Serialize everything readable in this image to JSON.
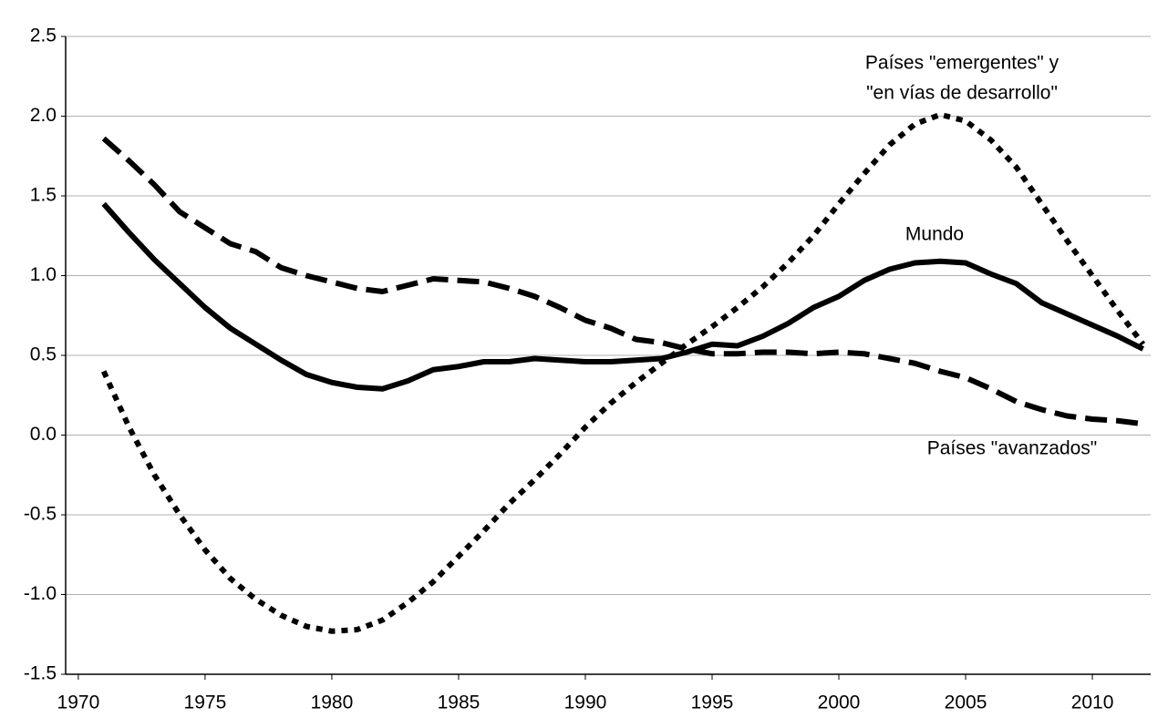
{
  "chart_data": {
    "type": "line",
    "x": [
      1971,
      1972,
      1973,
      1974,
      1975,
      1976,
      1977,
      1978,
      1979,
      1980,
      1981,
      1982,
      1983,
      1984,
      1985,
      1986,
      1987,
      1988,
      1989,
      1990,
      1991,
      1992,
      1993,
      1994,
      1995,
      1996,
      1997,
      1998,
      1999,
      2000,
      2001,
      2002,
      2003,
      2004,
      2005,
      2006,
      2007,
      2008,
      2009,
      2010,
      2011,
      2012
    ],
    "series": [
      {
        "name": "Mundo",
        "color": "#000000",
        "dash": "solid",
        "values": [
          1.45,
          1.27,
          1.1,
          0.95,
          0.8,
          0.67,
          0.57,
          0.47,
          0.38,
          0.33,
          0.3,
          0.29,
          0.34,
          0.41,
          0.43,
          0.46,
          0.46,
          0.48,
          0.47,
          0.46,
          0.46,
          0.47,
          0.48,
          0.52,
          0.57,
          0.56,
          0.62,
          0.7,
          0.8,
          0.87,
          0.97,
          1.04,
          1.08,
          1.09,
          1.08,
          1.01,
          0.95,
          0.83,
          0.76,
          0.69,
          0.62,
          0.54
        ]
      },
      {
        "name": "Países \"avanzados\"",
        "color": "#000000",
        "dash": "dashed",
        "values": [
          1.86,
          1.72,
          1.57,
          1.4,
          1.3,
          1.2,
          1.15,
          1.05,
          1.0,
          0.96,
          0.92,
          0.9,
          0.94,
          0.98,
          0.97,
          0.96,
          0.92,
          0.87,
          0.8,
          0.72,
          0.67,
          0.6,
          0.58,
          0.54,
          0.51,
          0.51,
          0.52,
          0.52,
          0.51,
          0.52,
          0.51,
          0.48,
          0.45,
          0.4,
          0.36,
          0.29,
          0.21,
          0.16,
          0.12,
          0.1,
          0.09,
          0.07
        ]
      },
      {
        "name": [
          "Países \"emergentes\"  y",
          "\"en vías de desarrollo\""
        ],
        "color": "#000000",
        "dash": "dotted",
        "values": [
          0.4,
          0.05,
          -0.25,
          -0.5,
          -0.72,
          -0.9,
          -1.03,
          -1.13,
          -1.2,
          -1.23,
          -1.22,
          -1.16,
          -1.05,
          -0.92,
          -0.76,
          -0.6,
          -0.43,
          -0.28,
          -0.12,
          0.05,
          0.2,
          0.33,
          0.45,
          0.57,
          0.68,
          0.8,
          0.93,
          1.08,
          1.25,
          1.45,
          1.64,
          1.82,
          1.95,
          2.01,
          1.97,
          1.85,
          1.68,
          1.45,
          1.22,
          1.0,
          0.78,
          0.57
        ]
      }
    ],
    "xlim": [
      1969.5,
      2012.3
    ],
    "xticks": [
      1970,
      1975,
      1980,
      1985,
      1990,
      1995,
      2000,
      2005,
      2010
    ],
    "ylim": [
      -1.5,
      2.5
    ],
    "yticks": [
      2.5,
      {
        "value": 2,
        "label": "2.0"
      },
      1.5,
      {
        "value": 1,
        "label": "1.0"
      },
      0.5,
      {
        "value": 0,
        "label": "0.0"
      },
      -0.5,
      {
        "value": -1,
        "label": "-1.0"
      },
      -1.5
    ],
    "grid": true
  }
}
